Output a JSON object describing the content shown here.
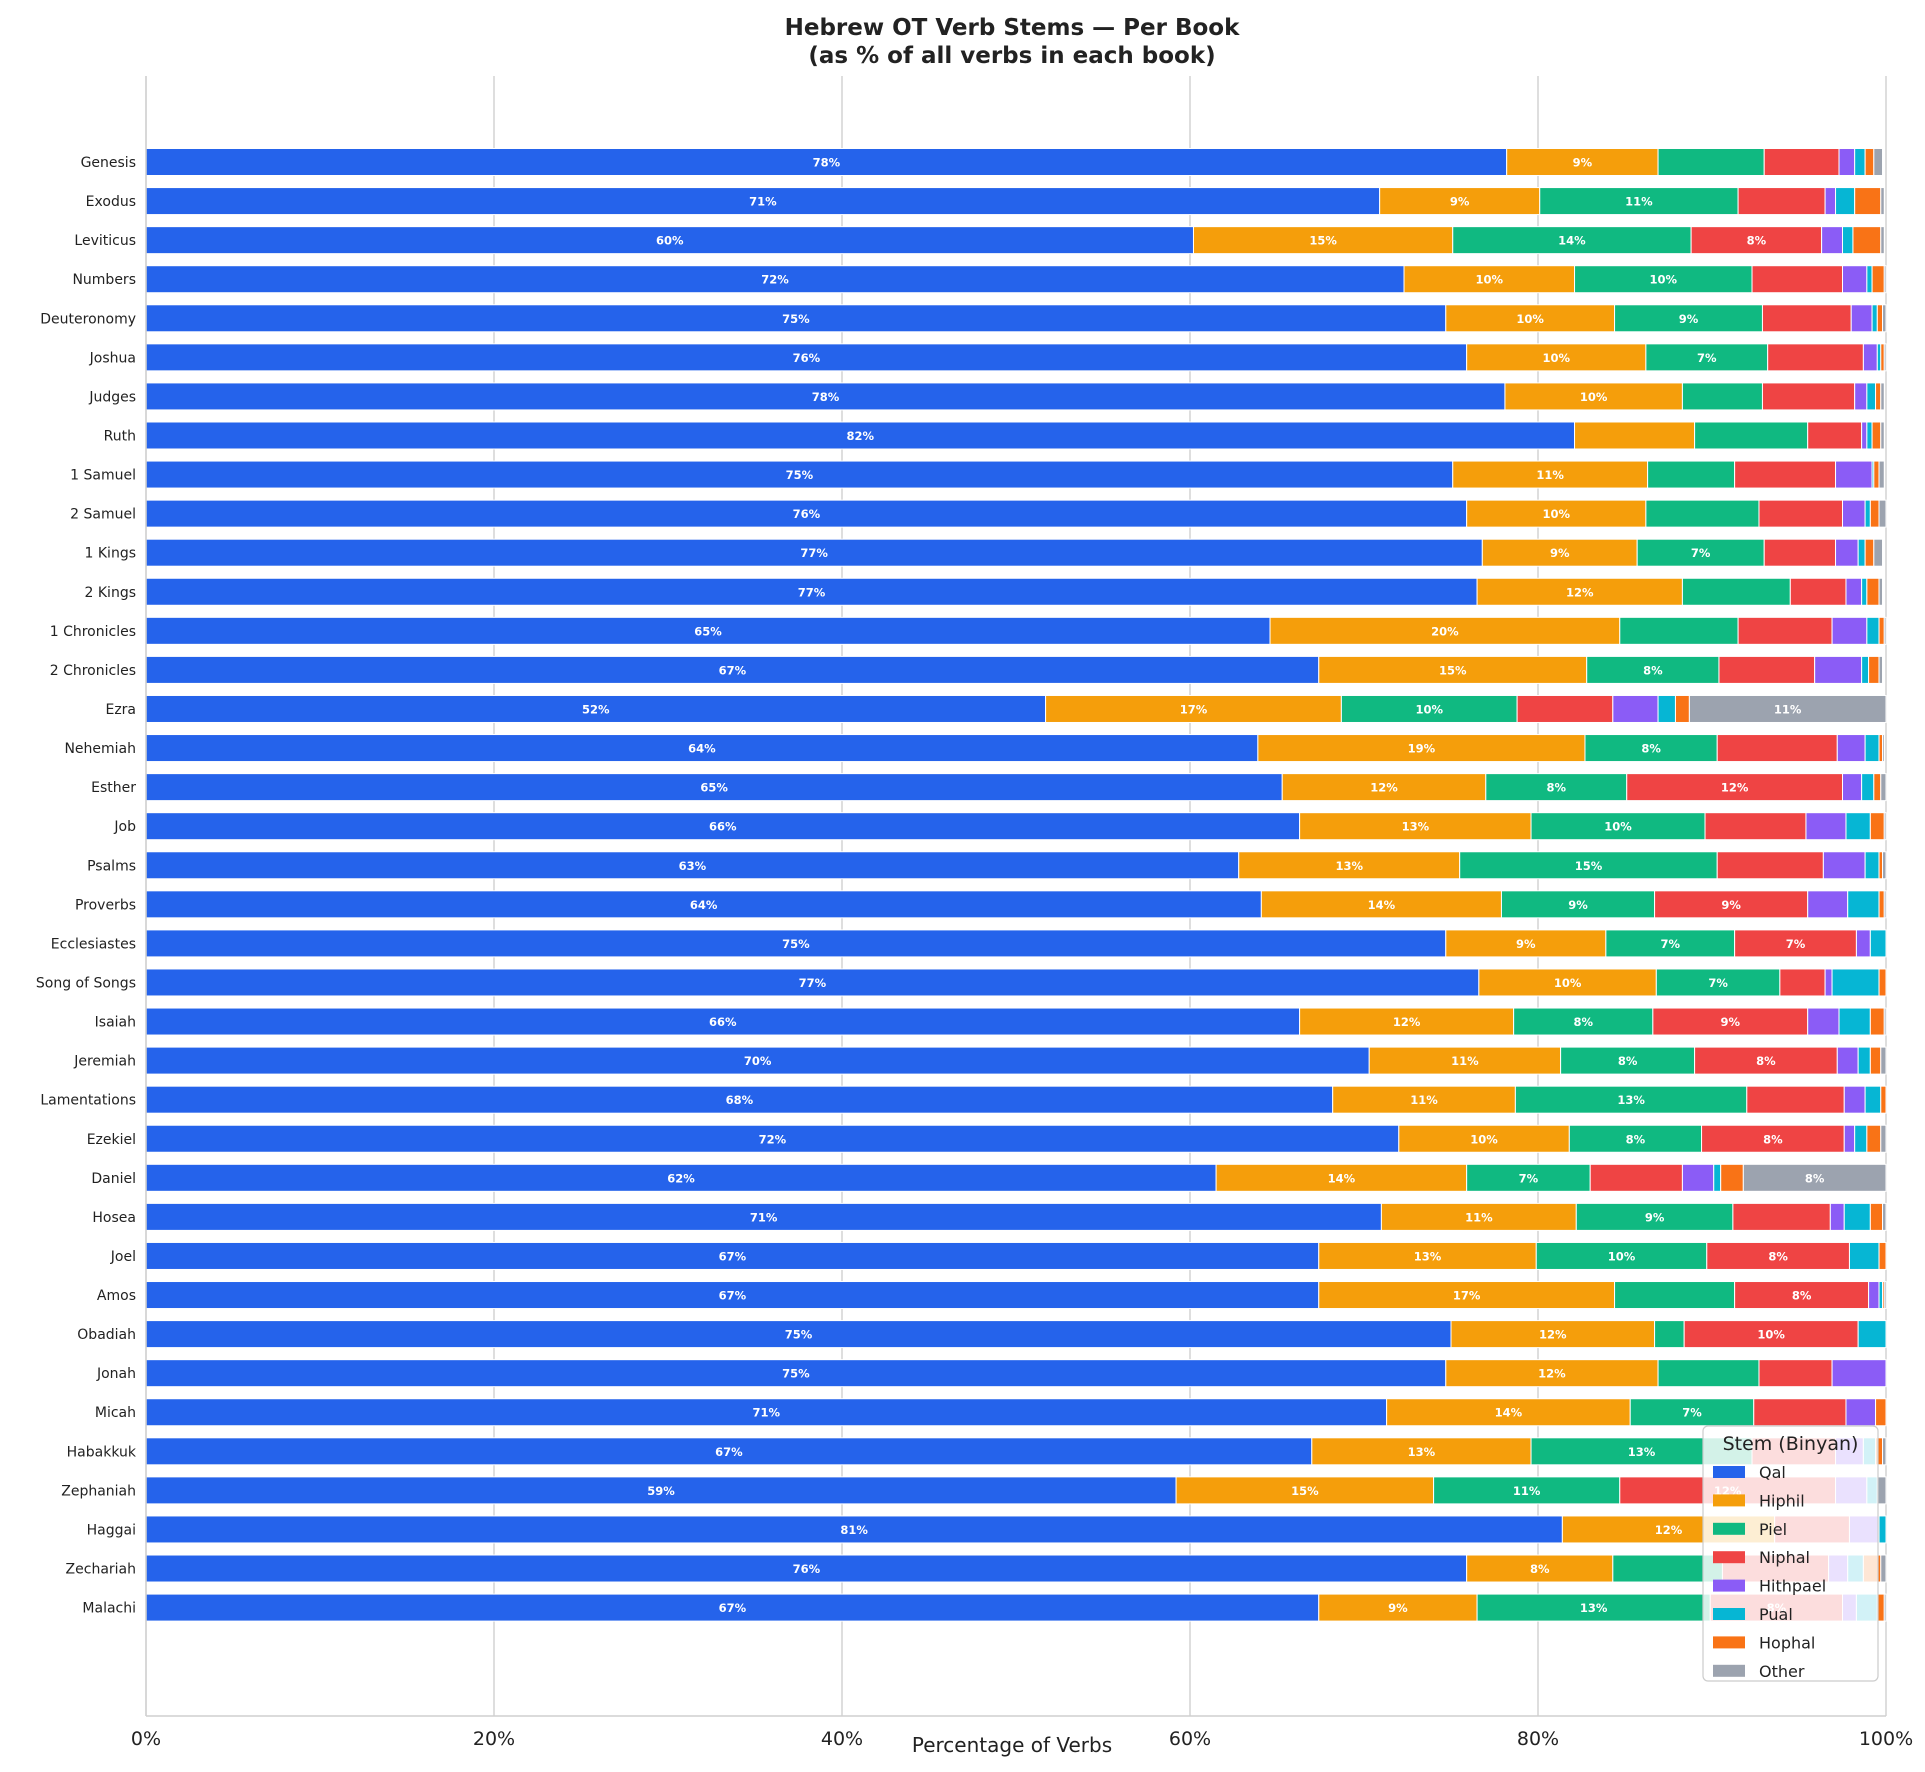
{
  "chart_data": {
    "type": "bar",
    "orientation": "horizontal",
    "stacked": true,
    "title": "Hebrew OT Verb Stems — Per Book",
    "subtitle": "(as % of all verbs in each book)",
    "xlabel": "Percentage of Verbs",
    "ylabel": "",
    "xlim": [
      0,
      100
    ],
    "xticks": [
      0,
      20,
      40,
      60,
      80,
      100
    ],
    "xtick_labels": [
      "0%",
      "20%",
      "40%",
      "60%",
      "80%",
      "100%"
    ],
    "grid": "vertical",
    "legend": {
      "title": "Stem (Binyan)",
      "placement": "bottom-right"
    },
    "series": [
      {
        "name": "Qal",
        "color": "#2563eb"
      },
      {
        "name": "Hiphil",
        "color": "#f59e0b"
      },
      {
        "name": "Piel",
        "color": "#10b981"
      },
      {
        "name": "Niphal",
        "color": "#ef4444"
      },
      {
        "name": "Hithpael",
        "color": "#8b5cf6"
      },
      {
        "name": "Pual",
        "color": "#06b6d4"
      },
      {
        "name": "Hophal",
        "color": "#f97316"
      },
      {
        "name": "Other",
        "color": "#9ca3af"
      }
    ],
    "categories": [
      "Genesis",
      "Exodus",
      "Leviticus",
      "Numbers",
      "Deuteronomy",
      "Joshua",
      "Judges",
      "Ruth",
      "1 Samuel",
      "2 Samuel",
      "1 Kings",
      "2 Kings",
      "1 Chronicles",
      "2 Chronicles",
      "Ezra",
      "Nehemiah",
      "Esther",
      "Job",
      "Psalms",
      "Proverbs",
      "Ecclesiastes",
      "Song of Songs",
      "Isaiah",
      "Jeremiah",
      "Lamentations",
      "Ezekiel",
      "Daniel",
      "Hosea",
      "Joel",
      "Amos",
      "Obadiah",
      "Jonah",
      "Micah",
      "Habakkuk",
      "Zephaniah",
      "Haggai",
      "Zechariah",
      "Malachi"
    ],
    "values": [
      [
        78.2,
        8.7,
        6.1,
        4.3,
        0.9,
        0.6,
        0.5,
        0.5
      ],
      [
        70.9,
        9.2,
        11.4,
        5.0,
        0.6,
        1.1,
        1.5,
        0.2
      ],
      [
        60.2,
        14.9,
        13.7,
        7.5,
        1.2,
        0.6,
        1.6,
        0.2
      ],
      [
        72.3,
        9.8,
        10.2,
        5.2,
        1.4,
        0.3,
        0.7,
        0.1
      ],
      [
        74.7,
        9.7,
        8.5,
        5.1,
        1.2,
        0.3,
        0.3,
        0.2
      ],
      [
        75.9,
        10.3,
        7.0,
        5.5,
        0.8,
        0.2,
        0.2,
        0.1
      ],
      [
        78.1,
        10.2,
        4.6,
        5.3,
        0.7,
        0.5,
        0.3,
        0.2
      ],
      [
        82.1,
        6.9,
        6.5,
        3.1,
        0.3,
        0.3,
        0.5,
        0.2
      ],
      [
        75.1,
        11.2,
        5.0,
        5.8,
        2.1,
        0.1,
        0.3,
        0.3
      ],
      [
        75.9,
        10.3,
        6.5,
        4.8,
        1.3,
        0.3,
        0.5,
        0.4
      ],
      [
        76.8,
        8.9,
        7.3,
        4.1,
        1.3,
        0.4,
        0.5,
        0.5
      ],
      [
        76.5,
        11.8,
        6.2,
        3.2,
        0.9,
        0.3,
        0.7,
        0.2
      ],
      [
        64.6,
        20.1,
        6.8,
        5.4,
        2.0,
        0.7,
        0.3,
        0.1
      ],
      [
        67.4,
        15.4,
        7.6,
        5.5,
        2.7,
        0.4,
        0.6,
        0.2
      ],
      [
        51.7,
        17.0,
        10.1,
        5.5,
        2.6,
        1.0,
        0.8,
        11.3
      ],
      [
        63.9,
        18.8,
        7.6,
        6.9,
        1.6,
        0.8,
        0.2,
        0.1
      ],
      [
        65.3,
        11.7,
        8.1,
        12.4,
        1.1,
        0.7,
        0.4,
        0.3
      ],
      [
        66.3,
        13.3,
        10.0,
        5.8,
        2.3,
        1.4,
        0.8,
        0.1
      ],
      [
        62.8,
        12.7,
        14.8,
        6.1,
        2.4,
        0.8,
        0.2,
        0.2
      ],
      [
        64.1,
        13.8,
        8.8,
        8.8,
        2.3,
        1.8,
        0.3,
        0.1
      ],
      [
        74.7,
        9.2,
        7.4,
        7.0,
        0.8,
        0.9,
        0.0,
        0.0
      ],
      [
        76.6,
        10.2,
        7.1,
        2.6,
        0.4,
        2.7,
        0.4,
        0.0
      ],
      [
        66.3,
        12.3,
        8.0,
        8.9,
        1.8,
        1.8,
        0.8,
        0.1
      ],
      [
        70.3,
        11.0,
        7.7,
        8.2,
        1.2,
        0.7,
        0.6,
        0.3
      ],
      [
        68.2,
        10.5,
        13.3,
        5.6,
        1.2,
        0.9,
        0.3,
        0.0
      ],
      [
        72.0,
        9.8,
        7.6,
        8.2,
        0.6,
        0.7,
        0.8,
        0.3
      ],
      [
        61.5,
        14.4,
        7.1,
        5.3,
        1.8,
        0.4,
        1.3,
        8.2
      ],
      [
        71.0,
        11.2,
        9.0,
        5.6,
        0.8,
        1.5,
        0.7,
        0.2
      ],
      [
        67.4,
        12.5,
        9.8,
        8.2,
        0.0,
        1.7,
        0.4,
        0.0
      ],
      [
        67.4,
        17.0,
        6.9,
        7.7,
        0.6,
        0.2,
        0.1,
        0.1
      ],
      [
        75.0,
        11.7,
        1.7,
        10.0,
        0.0,
        1.6,
        0.0,
        0.0
      ],
      [
        74.7,
        12.2,
        5.8,
        4.2,
        3.1,
        0.0,
        0.0,
        0.0
      ],
      [
        71.3,
        14.0,
        7.1,
        5.3,
        1.7,
        0.0,
        0.6,
        0.0
      ],
      [
        67.0,
        12.6,
        12.7,
        4.8,
        1.6,
        0.7,
        0.4,
        0.2
      ],
      [
        59.2,
        14.8,
        10.7,
        12.4,
        1.8,
        0.6,
        0.0,
        0.5
      ],
      [
        81.4,
        12.2,
        0.0,
        4.3,
        1.7,
        0.4,
        0.0,
        0.0
      ],
      [
        75.9,
        8.4,
        6.3,
        6.1,
        1.1,
        0.9,
        1.0,
        0.3
      ],
      [
        67.4,
        9.1,
        13.4,
        7.6,
        0.8,
        1.2,
        0.4,
        0.1
      ]
    ]
  }
}
